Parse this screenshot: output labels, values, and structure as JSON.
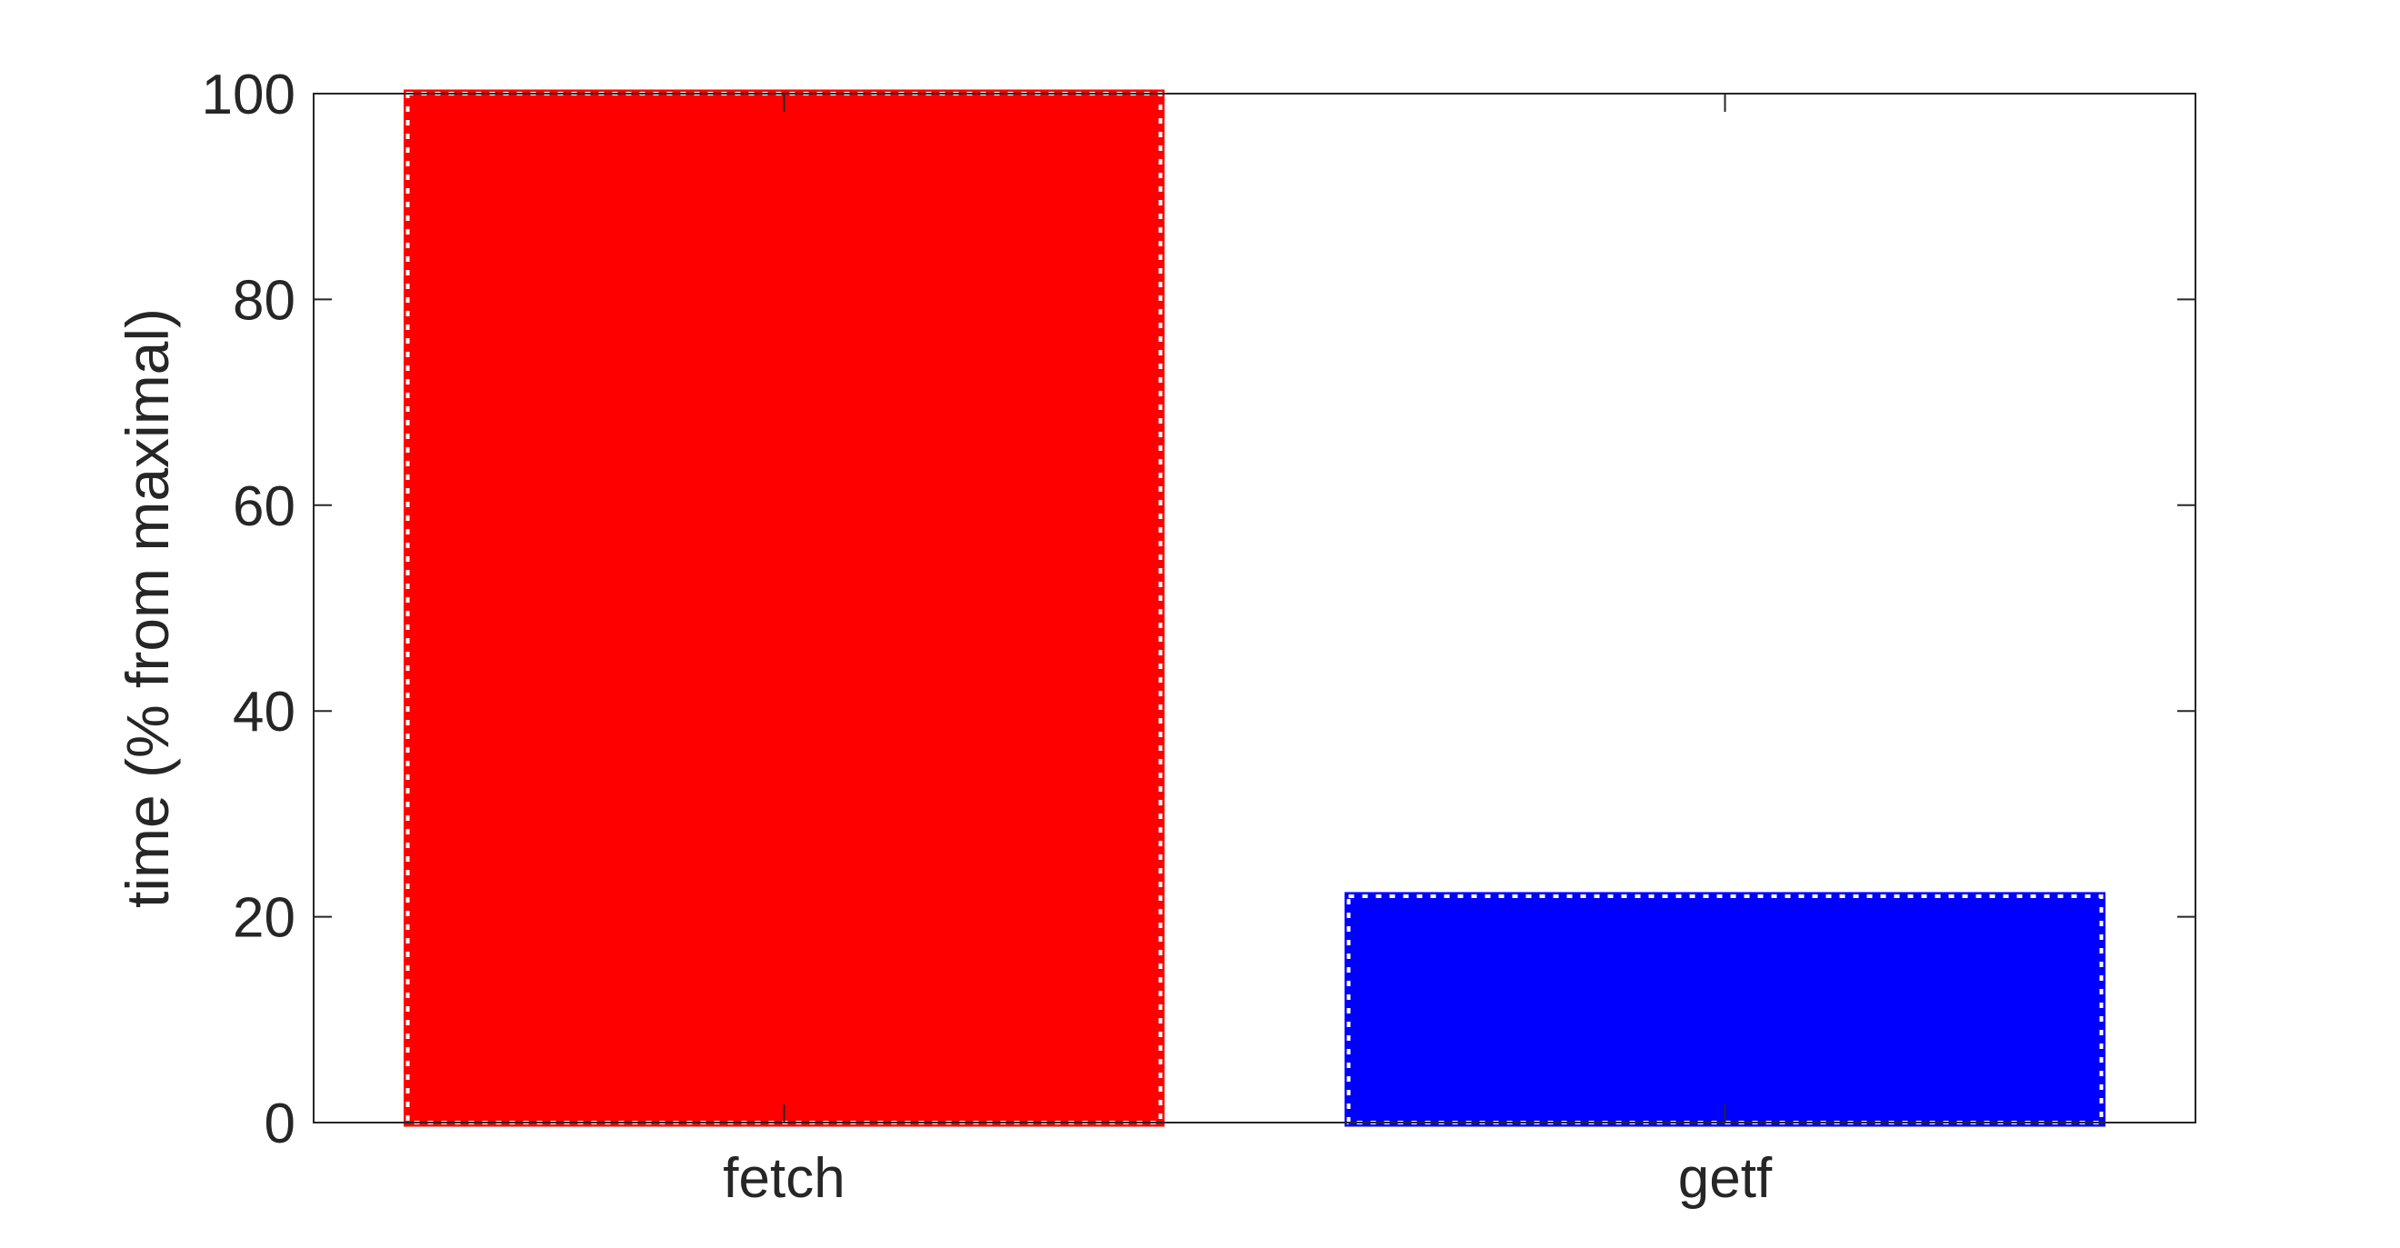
{
  "chart_data": {
    "type": "bar",
    "title": "",
    "xlabel": "",
    "ylabel": "time (% from maximal)",
    "categories": [
      "fetch",
      "getf"
    ],
    "values": [
      100,
      22
    ],
    "bar_colors": [
      "#ff0000",
      "#0000ff"
    ],
    "bar_edge_style": "dotted",
    "ylim": [
      0,
      100
    ],
    "yticks": [
      0,
      20,
      40,
      60,
      80,
      100
    ],
    "grid": false,
    "legend": "none",
    "box": true
  }
}
